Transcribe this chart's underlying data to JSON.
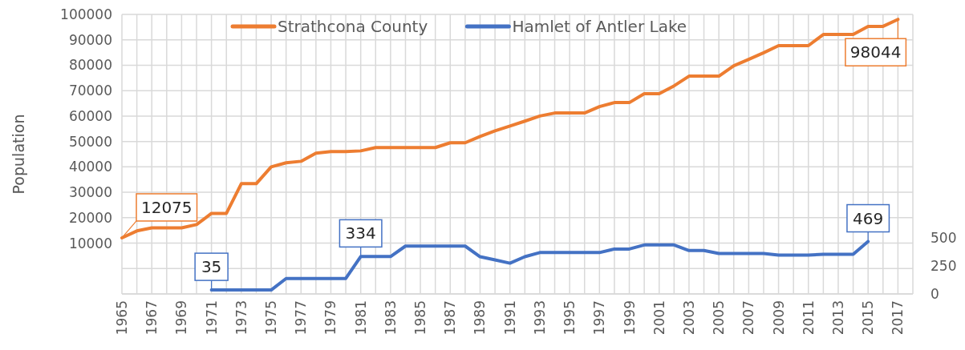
{
  "chart_data": {
    "type": "line",
    "ylabel": "Population",
    "xlim": [
      1965,
      2018
    ],
    "xticks": [
      1965,
      {
        "value": 1966,
        "label": null
      },
      1967,
      {
        "value": 1968,
        "label": null
      },
      1969,
      {
        "value": 1970,
        "label": null
      },
      1971,
      {
        "value": 1972,
        "label": null
      },
      1973,
      {
        "value": 1974,
        "label": null
      },
      1975,
      {
        "value": 1976,
        "label": null
      },
      1977,
      {
        "value": 1978,
        "label": null
      },
      1979,
      {
        "value": 1980,
        "label": null
      },
      1981,
      {
        "value": 1982,
        "label": null
      },
      1983,
      {
        "value": 1984,
        "label": null
      },
      1985,
      {
        "value": 1986,
        "label": null
      },
      1987,
      {
        "value": 1988,
        "label": null
      },
      1989,
      {
        "value": 1990,
        "label": null
      },
      1991,
      {
        "value": 1992,
        "label": null
      },
      1993,
      {
        "value": 1994,
        "label": null
      },
      1995,
      {
        "value": 1996,
        "label": null
      },
      1997,
      {
        "value": 1998,
        "label": null
      },
      1999,
      {
        "value": 2000,
        "label": null
      },
      2001,
      {
        "value": 2002,
        "label": null
      },
      2003,
      {
        "value": 2004,
        "label": null
      },
      2005,
      {
        "value": 2006,
        "label": null
      },
      2007,
      {
        "value": 2008,
        "label": null
      },
      2009,
      {
        "value": 2010,
        "label": null
      },
      2011,
      {
        "value": 2012,
        "label": null
      },
      2013,
      {
        "value": 2014,
        "label": null
      },
      2015,
      {
        "value": 2016,
        "label": null
      },
      2017,
      {
        "value": 2018,
        "label": null
      }
    ],
    "ylim": [
      -10000,
      100000
    ],
    "yticks": [
      {
        "value": -10000,
        "label": null
      },
      {
        "value": 0,
        "label": null
      },
      10000,
      20000,
      30000,
      40000,
      50000,
      60000,
      70000,
      80000,
      90000,
      100000
    ],
    "y2lim": [
      0,
      2500
    ],
    "y2ticks": [
      0,
      250,
      500
    ],
    "grid": true,
    "legend": "top",
    "marker": "none",
    "line_style": "solid",
    "series": [
      {
        "name": "Strathcona County",
        "color": "#ed7d31",
        "x": [
          1965,
          1966,
          1967,
          1968,
          1969,
          1970,
          1971,
          1972,
          1973,
          1974,
          1975,
          1976,
          1977,
          1978,
          1979,
          1980,
          1981,
          1982,
          1983,
          1984,
          1985,
          1986,
          1987,
          1988,
          1989,
          1990,
          1991,
          1992,
          1993,
          1994,
          1995,
          1996,
          1997,
          1998,
          1999,
          2000,
          2001,
          2002,
          2003,
          2004,
          2005,
          2006,
          2007,
          2008,
          2009,
          2010,
          2011,
          2012,
          2013,
          2014,
          2015,
          2016,
          2017
        ],
        "values": [
          12075,
          14800,
          16000,
          16000,
          16000,
          17300,
          21700,
          21700,
          33400,
          33400,
          40000,
          41600,
          42200,
          45400,
          46000,
          46000,
          46300,
          47600,
          47600,
          47600,
          47600,
          47600,
          49500,
          49500,
          52000,
          54200,
          56100,
          58000,
          60000,
          61200,
          61200,
          61200,
          63700,
          65300,
          65300,
          68800,
          68800,
          71900,
          75700,
          75700,
          75700,
          79800,
          82300,
          84900,
          87700,
          87700,
          87700,
          92100,
          92100,
          92100,
          95300,
          95300,
          98044
        ],
        "value_labels": [
          "12075",
          null,
          null,
          null,
          null,
          null,
          null,
          null,
          null,
          null,
          null,
          null,
          null,
          null,
          null,
          null,
          null,
          null,
          null,
          null,
          null,
          null,
          null,
          null,
          null,
          null,
          null,
          null,
          null,
          null,
          null,
          null,
          null,
          null,
          null,
          null,
          null,
          null,
          null,
          null,
          null,
          null,
          null,
          null,
          null,
          null,
          null,
          null,
          null,
          null,
          null,
          null,
          "98044"
        ]
      },
      {
        "name": "Hamlet of Antler Lake",
        "color": "#4472c4",
        "axis": "y2",
        "x": [
          1971,
          1972,
          1973,
          1974,
          1975,
          1976,
          1977,
          1978,
          1979,
          1980,
          1981,
          1982,
          1983,
          1984,
          1985,
          1986,
          1987,
          1988,
          1989,
          1990,
          1991,
          1992,
          1993,
          1994,
          1995,
          1996,
          1997,
          1998,
          1999,
          2000,
          2001,
          2002,
          2003,
          2004,
          2005,
          2006,
          2007,
          2008,
          2009,
          2010,
          2011,
          2012,
          2013,
          2014,
          2015
        ],
        "values": [
          35,
          35,
          35,
          35,
          35,
          138,
          138,
          138,
          138,
          138,
          334,
          334,
          334,
          428,
          428,
          428,
          428,
          428,
          333,
          304,
          275,
          333,
          370,
          370,
          370,
          370,
          370,
          402,
          402,
          438,
          438,
          438,
          388,
          388,
          362,
          362,
          362,
          362,
          348,
          348,
          348,
          355,
          355,
          355,
          469
        ],
        "value_labels": [
          "35",
          null,
          null,
          null,
          null,
          null,
          null,
          null,
          null,
          null,
          "334",
          null,
          null,
          null,
          null,
          null,
          null,
          null,
          null,
          null,
          null,
          null,
          null,
          null,
          null,
          null,
          null,
          null,
          null,
          null,
          null,
          null,
          null,
          null,
          null,
          null,
          null,
          null,
          null,
          null,
          null,
          null,
          null,
          null,
          "469"
        ]
      }
    ]
  }
}
